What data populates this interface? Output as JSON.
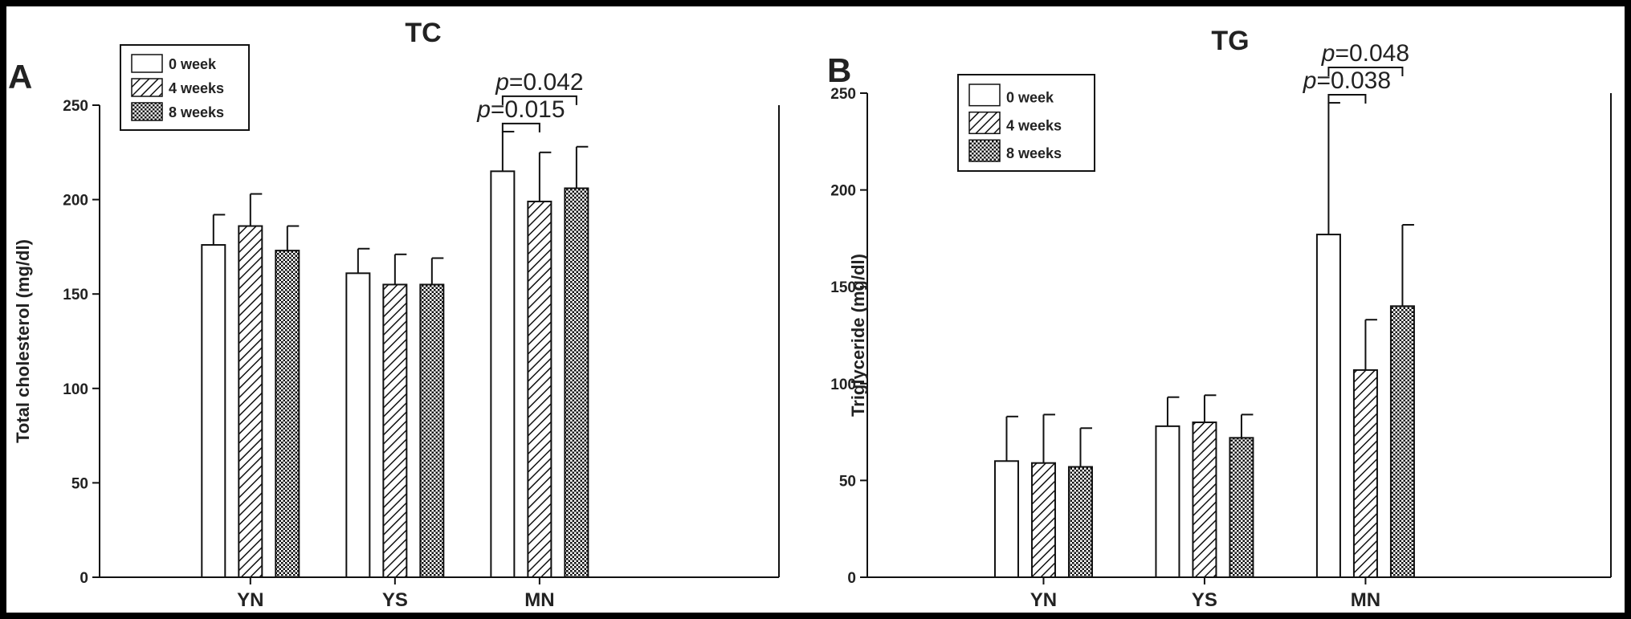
{
  "chart_data": [
    {
      "panel": "A",
      "title": "TC",
      "type": "bar",
      "ylabel": "Total cholesterol (mg/dl)",
      "ylim": [
        0,
        250
      ],
      "yticks": [
        0,
        50,
        100,
        150,
        200,
        250
      ],
      "categories": [
        "YN",
        "YS",
        "MN"
      ],
      "legend": {
        "placement": "top-left",
        "entries": [
          "0 week",
          "4 weeks",
          "8 weeks"
        ]
      },
      "series": [
        {
          "name": "0 week",
          "values": [
            176,
            161,
            215
          ],
          "errors": [
            16,
            13,
            21
          ]
        },
        {
          "name": "4 weeks",
          "values": [
            186,
            155,
            199
          ],
          "errors": [
            17,
            16,
            26
          ]
        },
        {
          "name": "8 weeks",
          "values": [
            173,
            155,
            206
          ],
          "errors": [
            13,
            14,
            22
          ]
        }
      ],
      "annotations": [
        {
          "category": "MN",
          "from": 0,
          "to": 1,
          "label": "p=0.015",
          "level": 1
        },
        {
          "category": "MN",
          "from": 0,
          "to": 2,
          "label": "p=0.042",
          "level": 2
        }
      ]
    },
    {
      "panel": "B",
      "title": "TG",
      "type": "bar",
      "ylabel": "Triglyceride (mg/dl)",
      "ylim": [
        0,
        250
      ],
      "yticks": [
        0,
        50,
        100,
        150,
        200,
        250
      ],
      "categories": [
        "YN",
        "YS",
        "MN"
      ],
      "legend": {
        "placement": "top-left",
        "entries": [
          "0 week",
          "4 weeks",
          "8 weeks"
        ]
      },
      "series": [
        {
          "name": "0 week",
          "values": [
            60,
            78,
            177
          ],
          "errors": [
            23,
            15,
            68
          ]
        },
        {
          "name": "4 weeks",
          "values": [
            59,
            80,
            107
          ],
          "errors": [
            25,
            14,
            26
          ]
        },
        {
          "name": "8 weeks",
          "values": [
            57,
            72,
            140
          ],
          "errors": [
            20,
            12,
            42
          ]
        }
      ],
      "annotations": [
        {
          "category": "MN",
          "from": 0,
          "to": 1,
          "label": "p=0.038",
          "level": 1
        },
        {
          "category": "MN",
          "from": 0,
          "to": 2,
          "label": "p=0.048",
          "level": 2
        }
      ]
    }
  ]
}
